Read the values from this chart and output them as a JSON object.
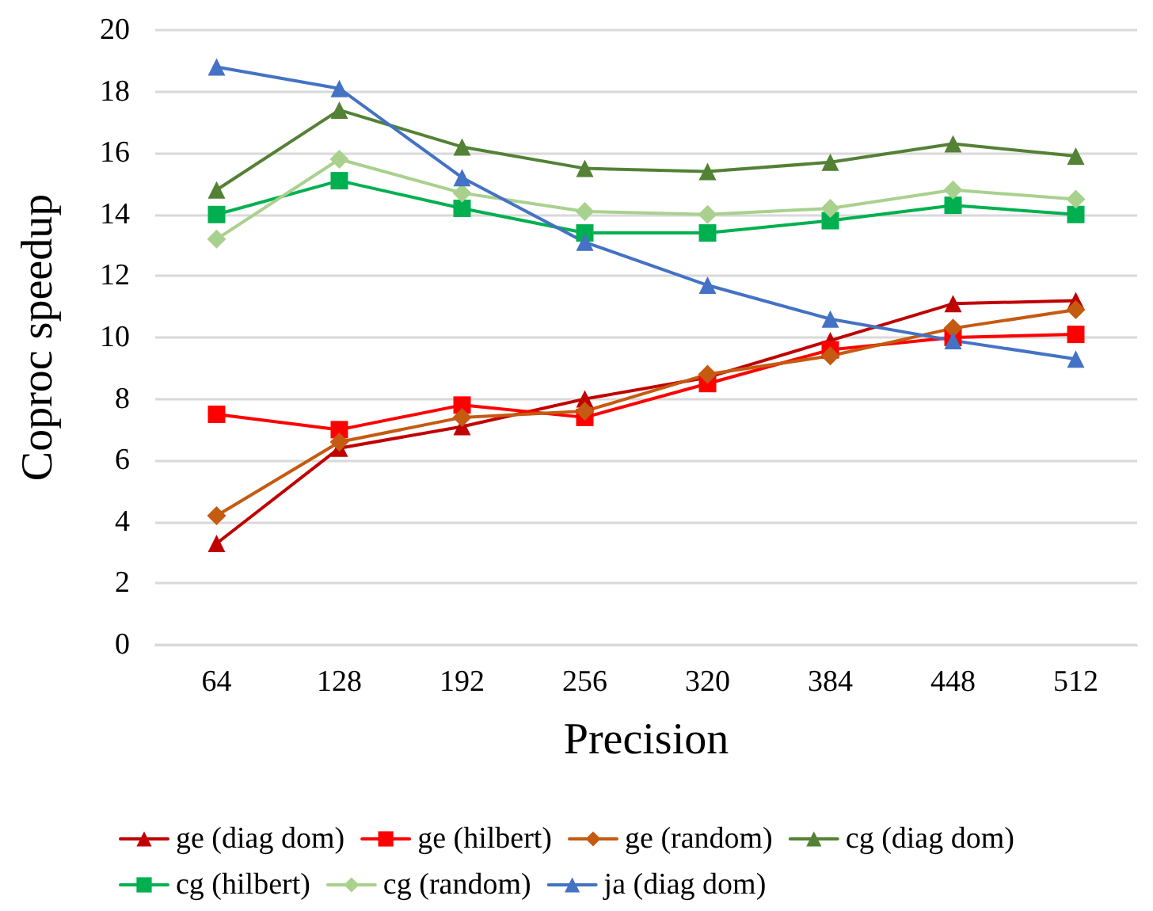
{
  "chart_data": {
    "type": "line",
    "xlabel": "Precision",
    "ylabel": "Coproc speedup",
    "categories": [
      "64",
      "128",
      "192",
      "256",
      "320",
      "384",
      "448",
      "512"
    ],
    "series": [
      {
        "name": "ge (diag dom)",
        "color": "#c00000",
        "marker": "triangle",
        "values": [
          3.3,
          6.4,
          7.1,
          8.0,
          8.7,
          9.9,
          11.1,
          11.2
        ]
      },
      {
        "name": "ge (hilbert)",
        "color": "#ff0000",
        "marker": "square",
        "values": [
          7.5,
          7.0,
          7.8,
          7.4,
          8.5,
          9.6,
          10.0,
          10.1
        ]
      },
      {
        "name": "ge (random)",
        "color": "#c55a11",
        "marker": "diamond",
        "values": [
          4.2,
          6.6,
          7.4,
          7.6,
          8.8,
          9.4,
          10.3,
          10.9
        ]
      },
      {
        "name": "cg (diag dom)",
        "color": "#538135",
        "marker": "triangle",
        "values": [
          14.8,
          17.4,
          16.2,
          15.5,
          15.4,
          15.7,
          16.3,
          15.9
        ]
      },
      {
        "name": "cg (hilbert)",
        "color": "#00b050",
        "marker": "square",
        "values": [
          14.0,
          15.1,
          14.2,
          13.4,
          13.4,
          13.8,
          14.3,
          14.0
        ]
      },
      {
        "name": "cg (random)",
        "color": "#a9d18e",
        "marker": "diamond",
        "values": [
          13.2,
          15.8,
          14.7,
          14.1,
          14.0,
          14.2,
          14.8,
          14.5
        ]
      },
      {
        "name": "ja (diag dom)",
        "color": "#4472c4",
        "marker": "triangle",
        "values": [
          18.8,
          18.1,
          15.2,
          13.1,
          11.7,
          10.6,
          9.9,
          9.3
        ]
      }
    ],
    "ylim": [
      0,
      20
    ],
    "yticks": [
      0,
      2,
      4,
      6,
      8,
      10,
      12,
      14,
      16,
      18,
      20
    ],
    "grid": "y",
    "legend": "bottom",
    "line_style": "solid"
  }
}
